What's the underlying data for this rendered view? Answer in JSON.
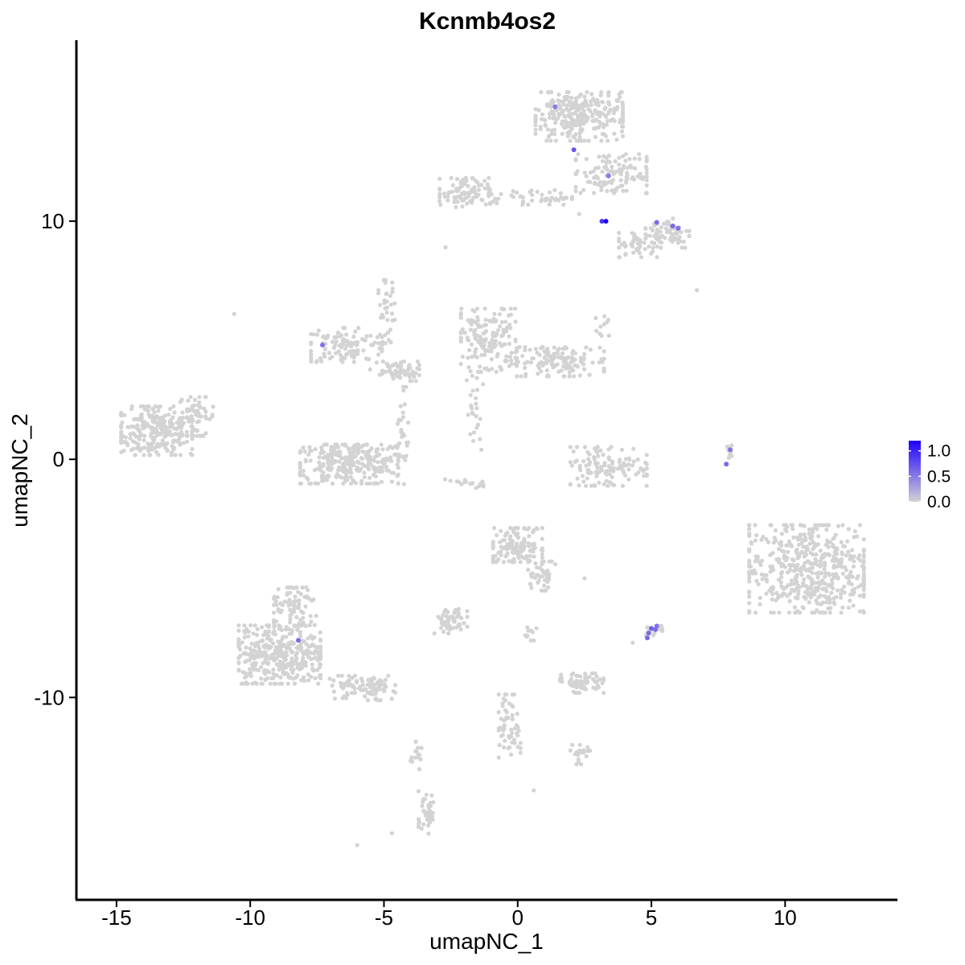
{
  "chart_data": {
    "type": "scatter",
    "title": "Kcnmb4os2",
    "xlabel": "umapNC_1",
    "ylabel": "umapNC_2",
    "xlim": [
      -16.5,
      14.2
    ],
    "ylim": [
      -18.5,
      17.6
    ],
    "x_ticks": [
      -15,
      -10,
      -5,
      0,
      5,
      10
    ],
    "x_tick_labels": [
      "-15",
      "-10",
      "-5",
      "0",
      "5",
      "10"
    ],
    "y_ticks": [
      10,
      0,
      -10
    ],
    "y_tick_labels": [
      "10",
      "0",
      "-10"
    ],
    "grid": false,
    "legend_position": "right",
    "colors": {
      "low": "#d3d3d3",
      "high": "#1f00ff"
    },
    "color_scale": {
      "min": 0.0,
      "max": 1.2,
      "ticks": [
        1.0,
        0.5,
        0.0
      ],
      "tick_labels": [
        "1.0",
        "0.5",
        "0.0"
      ]
    },
    "clusters": [
      {
        "cx": -13.5,
        "cy": 1.2,
        "rx": 1.3,
        "ry": 1.0,
        "n": 260
      },
      {
        "cx": -12.0,
        "cy": 1.8,
        "rx": 0.6,
        "ry": 0.8,
        "n": 50
      },
      {
        "cx": -6.3,
        "cy": -0.2,
        "rx": 1.8,
        "ry": 0.8,
        "n": 300
      },
      {
        "cx": -6.4,
        "cy": 4.8,
        "rx": 1.3,
        "ry": 0.7,
        "n": 120
      },
      {
        "cx": -4.6,
        "cy": 3.7,
        "rx": 0.9,
        "ry": 0.4,
        "n": 60
      },
      {
        "cx": -1.1,
        "cy": 5.0,
        "rx": 1.0,
        "ry": 1.3,
        "n": 160
      },
      {
        "cx": 1.6,
        "cy": 4.1,
        "rx": 1.6,
        "ry": 0.6,
        "n": 140
      },
      {
        "cx": -4.9,
        "cy": 6.2,
        "rx": 0.3,
        "ry": 1.3,
        "n": 40
      },
      {
        "cx": 2.3,
        "cy": 14.4,
        "rx": 1.6,
        "ry": 1.0,
        "n": 280
      },
      {
        "cx": 3.5,
        "cy": 12.0,
        "rx": 1.3,
        "ry": 0.8,
        "n": 120
      },
      {
        "cx": -2.0,
        "cy": 11.2,
        "rx": 0.9,
        "ry": 0.6,
        "n": 90
      },
      {
        "cx": 0.5,
        "cy": 11.0,
        "rx": 1.5,
        "ry": 0.3,
        "n": 50
      },
      {
        "cx": 5.6,
        "cy": 9.5,
        "rx": 0.8,
        "ry": 0.6,
        "n": 70
      },
      {
        "cx": 4.5,
        "cy": 9.0,
        "rx": 0.7,
        "ry": 0.5,
        "n": 50
      },
      {
        "cx": 3.4,
        "cy": -0.3,
        "rx": 1.4,
        "ry": 0.8,
        "n": 120
      },
      {
        "cx": 10.8,
        "cy": -4.6,
        "rx": 2.1,
        "ry": 1.8,
        "n": 520
      },
      {
        "cx": -8.9,
        "cy": -8.2,
        "rx": 1.5,
        "ry": 1.2,
        "n": 360
      },
      {
        "cx": -8.3,
        "cy": -6.3,
        "rx": 0.8,
        "ry": 0.9,
        "n": 90
      },
      {
        "cx": -5.8,
        "cy": -9.6,
        "rx": 1.2,
        "ry": 0.5,
        "n": 90
      },
      {
        "cx": 0.0,
        "cy": -3.6,
        "rx": 0.9,
        "ry": 0.7,
        "n": 140
      },
      {
        "cx": 0.9,
        "cy": -4.9,
        "rx": 0.5,
        "ry": 0.6,
        "n": 40
      },
      {
        "cx": -2.5,
        "cy": -6.8,
        "rx": 0.6,
        "ry": 0.5,
        "n": 50
      },
      {
        "cx": 2.4,
        "cy": -9.4,
        "rx": 0.8,
        "ry": 0.4,
        "n": 70
      },
      {
        "cx": -0.3,
        "cy": -11.2,
        "rx": 0.4,
        "ry": 1.3,
        "n": 60
      },
      {
        "cx": -3.4,
        "cy": -14.8,
        "rx": 0.3,
        "ry": 0.9,
        "n": 40
      },
      {
        "cx": 2.3,
        "cy": -12.4,
        "rx": 0.4,
        "ry": 0.4,
        "n": 20
      },
      {
        "cx": -3.8,
        "cy": -12.4,
        "rx": 0.2,
        "ry": 0.6,
        "n": 15
      },
      {
        "cx": -4.3,
        "cy": 1.0,
        "rx": 0.2,
        "ry": 2.0,
        "n": 30
      },
      {
        "cx": -1.6,
        "cy": 2.1,
        "rx": 0.3,
        "ry": 1.7,
        "n": 25
      },
      {
        "cx": -2.0,
        "cy": -1.0,
        "rx": 0.7,
        "ry": 0.2,
        "n": 18
      },
      {
        "cx": 7.9,
        "cy": 0.2,
        "rx": 0.1,
        "ry": 0.5,
        "n": 10
      },
      {
        "cx": 5.1,
        "cy": -7.2,
        "rx": 0.3,
        "ry": 0.2,
        "n": 14
      },
      {
        "cx": 3.1,
        "cy": 5.6,
        "rx": 0.4,
        "ry": 0.4,
        "n": 10
      },
      {
        "cx": 0.5,
        "cy": -7.3,
        "rx": 0.3,
        "ry": 0.3,
        "n": 10
      }
    ],
    "sparse_points": [
      {
        "x": -10.6,
        "y": 6.1
      },
      {
        "x": -2.7,
        "y": 8.9
      },
      {
        "x": 6.7,
        "y": 7.1
      },
      {
        "x": -6.0,
        "y": -16.2
      },
      {
        "x": -4.7,
        "y": -15.7
      },
      {
        "x": 0.6,
        "y": -13.9
      },
      {
        "x": 2.5,
        "y": -5.0
      },
      {
        "x": 4.3,
        "y": -7.7
      },
      {
        "x": 2.3,
        "y": 10.3
      }
    ],
    "expressing_points": [
      {
        "x": 1.4,
        "y": 14.8,
        "value": 0.5
      },
      {
        "x": 2.1,
        "y": 13.0,
        "value": 0.7
      },
      {
        "x": 3.4,
        "y": 11.9,
        "value": 0.5
      },
      {
        "x": 3.15,
        "y": 10.0,
        "value": 0.9
      },
      {
        "x": 3.3,
        "y": 10.0,
        "value": 1.2
      },
      {
        "x": 5.2,
        "y": 9.95,
        "value": 0.6
      },
      {
        "x": 5.8,
        "y": 9.8,
        "value": 0.6
      },
      {
        "x": 6.0,
        "y": 9.7,
        "value": 0.55
      },
      {
        "x": -7.3,
        "y": 4.8,
        "value": 0.55
      },
      {
        "x": 7.8,
        "y": -0.2,
        "value": 0.6
      },
      {
        "x": 7.95,
        "y": 0.4,
        "value": 0.55
      },
      {
        "x": -8.2,
        "y": -7.6,
        "value": 0.6
      },
      {
        "x": 4.9,
        "y": -7.3,
        "value": 0.6
      },
      {
        "x": 5.0,
        "y": -7.1,
        "value": 0.65
      },
      {
        "x": 5.15,
        "y": -7.15,
        "value": 0.6
      },
      {
        "x": 5.2,
        "y": -7.0,
        "value": 0.55
      },
      {
        "x": 4.85,
        "y": -7.5,
        "value": 0.6
      }
    ]
  }
}
